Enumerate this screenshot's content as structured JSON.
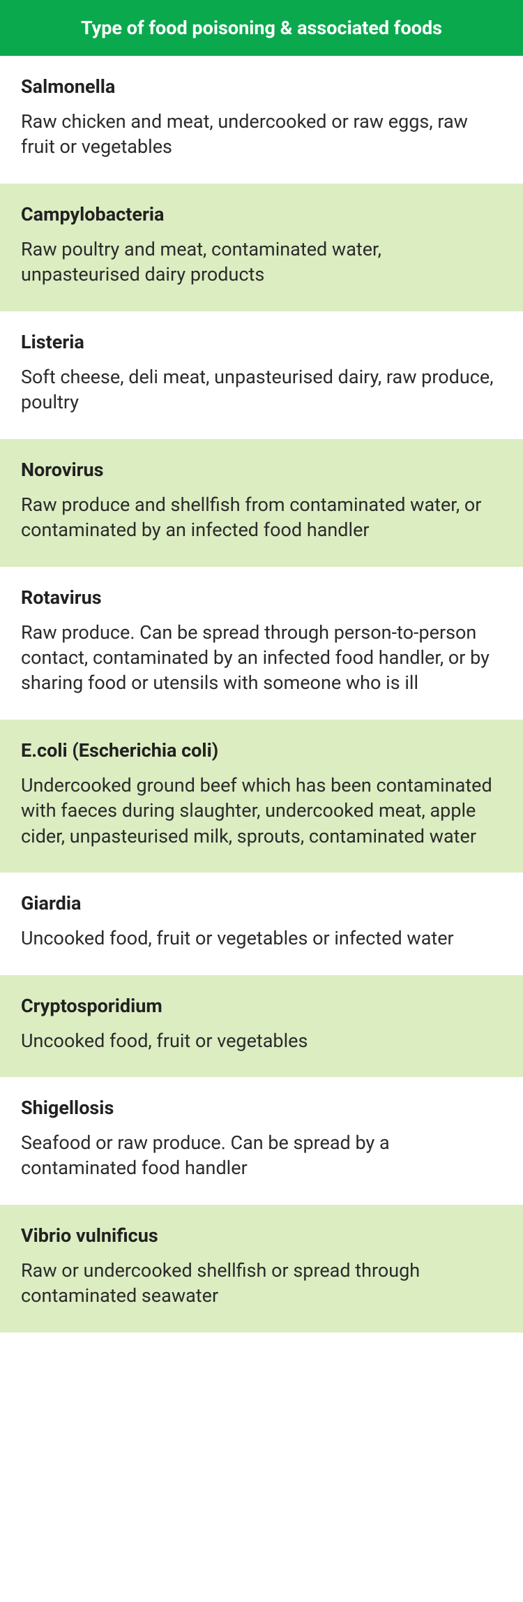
{
  "header": {
    "title": "Type of food poisoning & associated foods",
    "background_color": "#0ba94e",
    "text_color": "#ffffff"
  },
  "colors": {
    "row_odd_bg": "#ffffff",
    "row_even_bg": "#dcedc2",
    "title_color": "#212121",
    "description_color": "#2b2b2b"
  },
  "rows": [
    {
      "title": "Salmonella",
      "description": "Raw chicken and meat, undercooked or raw eggs, raw fruit or vegetables"
    },
    {
      "title": "Campylobacteria",
      "description": "Raw poultry and meat, contaminated water, unpasteurised dairy products"
    },
    {
      "title": "Listeria",
      "description": "Soft cheese, deli meat, unpasteurised dairy, raw produce, poultry"
    },
    {
      "title": "Norovirus",
      "description": "Raw produce and shellfish from contaminated water, or contaminated by an infected food handler"
    },
    {
      "title": "Rotavirus",
      "description": "Raw produce. Can be spread through person-to-person contact, contaminated by an infected food handler, or by sharing food or utensils with someone who is ill"
    },
    {
      "title": "E.coli (Escherichia coli)",
      "description": "Undercooked ground beef which has been contaminated with faeces during slaughter, undercooked meat, apple cider, unpasteurised milk, sprouts, contaminated water"
    },
    {
      "title": "Giardia",
      "description": "Uncooked food, fruit or vegetables or infected water"
    },
    {
      "title": "Cryptosporidium",
      "description": "Uncooked food, fruit or vegetables"
    },
    {
      "title": "Shigellosis",
      "description": "Seafood or raw produce. Can be spread by a contaminated food handler"
    },
    {
      "title": "Vibrio vulnificus",
      "description": "Raw or undercooked shellfish or spread through contaminated seawater"
    }
  ]
}
